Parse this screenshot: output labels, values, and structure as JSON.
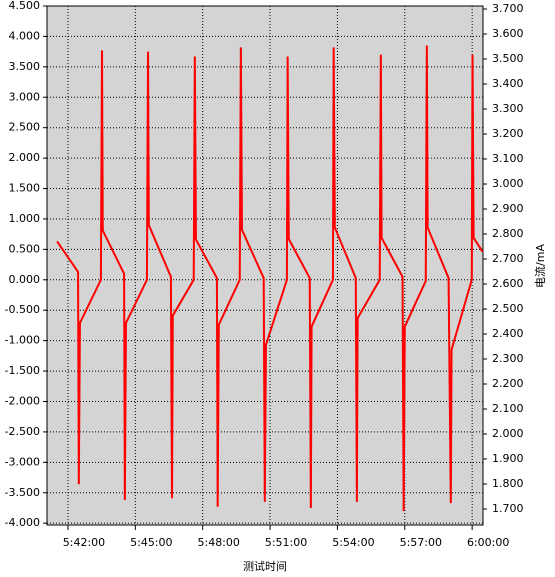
{
  "chart_data": {
    "type": "line",
    "x_label": "测试时间",
    "y2_label": "电流/mA",
    "grid": true,
    "x": [
      "5:41:31",
      "5:42:27",
      "5:42:29",
      "5:42:32",
      "5:43:28",
      "5:43:31",
      "5:43:33",
      "5:44:30",
      "5:44:32",
      "5:44:35",
      "5:45:31",
      "5:45:34",
      "5:45:36",
      "5:46:35",
      "5:46:38",
      "5:46:40",
      "5:47:36",
      "5:47:39",
      "5:47:42",
      "5:48:38",
      "5:48:40",
      "5:48:43",
      "5:49:39",
      "5:49:42",
      "5:49:45",
      "5:50:43",
      "5:50:46",
      "5:50:49",
      "5:51:45",
      "5:51:47",
      "5:51:50",
      "5:52:46",
      "5:52:49",
      "5:52:51",
      "5:53:48",
      "5:53:50",
      "5:53:53",
      "5:54:49",
      "5:54:52",
      "5:54:54",
      "5:55:53",
      "5:55:56",
      "5:55:58",
      "5:56:54",
      "5:56:57",
      "5:57:00",
      "5:57:56",
      "5:57:59",
      "5:58:01",
      "5:58:57",
      "5:59:03",
      "5:59:05",
      "5:59:59",
      "6:00:01",
      "6:00:04",
      "6:00:28"
    ],
    "series": [
      {
        "color": "#ff0000",
        "values": [
          0.63,
          0.13,
          -3.36,
          -0.71,
          0.0,
          3.77,
          0.81,
          0.1,
          -3.62,
          -0.71,
          0.0,
          3.75,
          0.9,
          0.05,
          -3.59,
          -0.59,
          0.0,
          3.67,
          0.66,
          0.03,
          -3.73,
          -0.74,
          0.0,
          3.82,
          0.82,
          0.03,
          -3.65,
          -1.07,
          0.0,
          3.67,
          0.67,
          0.03,
          -3.75,
          -0.77,
          0.0,
          3.82,
          0.86,
          0.03,
          -3.65,
          -0.63,
          0.0,
          3.7,
          0.69,
          0.05,
          -3.8,
          -0.77,
          -0.02,
          3.85,
          0.86,
          0.03,
          -3.67,
          -1.15,
          0.0,
          3.7,
          0.69,
          0.46
        ]
      }
    ],
    "xlim": [
      "5:41:04",
      "6:00:29"
    ],
    "xticks": [
      "5:42:00",
      "5:45:00",
      "5:48:00",
      "5:51:00",
      "5:54:00",
      "5:57:00",
      "6:00:00"
    ],
    "ylim": [
      -4.03,
      4.5
    ],
    "yticks": [
      {
        "value": -4,
        "label": "-4.000"
      },
      {
        "value": -3.5,
        "label": "-3.500"
      },
      {
        "value": -3,
        "label": "-3.000"
      },
      {
        "value": -2.5,
        "label": "-2.500"
      },
      {
        "value": -2,
        "label": "-2.000"
      },
      {
        "value": -1.5,
        "label": "-1.500"
      },
      {
        "value": -1,
        "label": "-1.000"
      },
      {
        "value": -0.5,
        "label": "-0.500"
      },
      {
        "value": 0,
        "label": "0.000"
      },
      {
        "value": 0.5,
        "label": "0.500"
      },
      {
        "value": 1,
        "label": "1.000"
      },
      {
        "value": 1.5,
        "label": "1.500"
      },
      {
        "value": 2,
        "label": "2.000"
      },
      {
        "value": 2.5,
        "label": "2.500"
      },
      {
        "value": 3,
        "label": "3.000"
      },
      {
        "value": 3.5,
        "label": "3.500"
      },
      {
        "value": 4,
        "label": "4.000"
      },
      {
        "value": 4.5,
        "label": "4.500"
      }
    ],
    "y2lim": [
      1.636,
      3.712
    ],
    "y2ticks": [
      {
        "value": 1.7,
        "label": "1.700"
      },
      {
        "value": 1.8,
        "label": "1.800"
      },
      {
        "value": 1.9,
        "label": "1.900"
      },
      {
        "value": 2.0,
        "label": "2.000"
      },
      {
        "value": 2.1,
        "label": "2.100"
      },
      {
        "value": 2.2,
        "label": "2.200"
      },
      {
        "value": 2.3,
        "label": "2.300"
      },
      {
        "value": 2.4,
        "label": "2.400"
      },
      {
        "value": 2.5,
        "label": "2.500"
      },
      {
        "value": 2.6,
        "label": "2.600"
      },
      {
        "value": 2.7,
        "label": "2.700"
      },
      {
        "value": 2.8,
        "label": "2.800"
      },
      {
        "value": 2.9,
        "label": "2.900"
      },
      {
        "value": 3.0,
        "label": "3.000"
      },
      {
        "value": 3.1,
        "label": "3.100"
      },
      {
        "value": 3.2,
        "label": "3.200"
      },
      {
        "value": 3.3,
        "label": "3.300"
      },
      {
        "value": 3.4,
        "label": "3.400"
      },
      {
        "value": 3.5,
        "label": "3.500"
      },
      {
        "value": 3.6,
        "label": "3.600"
      },
      {
        "value": 3.7,
        "label": "3.700"
      }
    ]
  }
}
